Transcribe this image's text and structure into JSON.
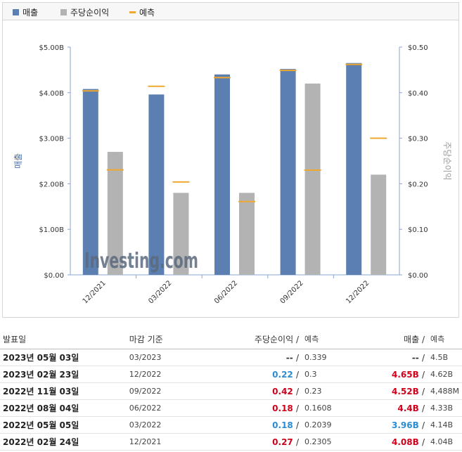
{
  "legend": {
    "items": [
      {
        "label": "매출",
        "color": "#5b7fb0"
      },
      {
        "label": "주당순이익",
        "color": "#b3b3b3"
      },
      {
        "label": "예측",
        "color": "#f0a830"
      }
    ]
  },
  "chart_data": {
    "type": "bar",
    "categories": [
      "12/2021",
      "03/2022",
      "06/2022",
      "09/2022",
      "12/2022"
    ],
    "series": [
      {
        "name": "매출",
        "axis": "left",
        "values": [
          4.08,
          3.96,
          4.4,
          4.52,
          4.65
        ],
        "forecast": [
          4.04,
          4.14,
          4.33,
          4.488,
          4.62
        ]
      },
      {
        "name": "주당순이익",
        "axis": "right",
        "values": [
          0.27,
          0.18,
          0.18,
          0.42,
          0.22
        ],
        "forecast": [
          0.2305,
          0.2039,
          0.1608,
          0.23,
          0.3
        ]
      }
    ],
    "ylabel_left": "매출",
    "ylabel_right": "주당순이익",
    "yticks_left": [
      "$0.00",
      "$1.00B",
      "$2.00B",
      "$3.00B",
      "$4.00B",
      "$5.00B"
    ],
    "yticks_right": [
      "$0.00",
      "$0.10",
      "$0.20",
      "$0.30",
      "$0.40",
      "$0.50"
    ],
    "ylim_left": [
      0,
      5
    ],
    "ylim_right": [
      0,
      0.5
    ],
    "watermark": "Investing.com"
  },
  "table": {
    "headers": {
      "date": "발표일",
      "period": "마감 기준",
      "eps": "주당순이익",
      "eps_fc": "예측",
      "rev": "매출",
      "rev_fc": "예측",
      "sep": "/"
    },
    "rows": [
      {
        "date": "2023년 05월 03일",
        "period": "03/2023",
        "eps": "--",
        "eps_fc": "0.339",
        "rev": "--",
        "rev_fc": "4.5B",
        "eps_color": "muted",
        "rev_color": "muted"
      },
      {
        "date": "2023년 02월 23일",
        "period": "12/2022",
        "eps": "0.22",
        "eps_fc": "0.3",
        "rev": "4.65B",
        "rev_fc": "4.62B",
        "eps_color": "green",
        "rev_color": "red"
      },
      {
        "date": "2022년 11월 03일",
        "period": "09/2022",
        "eps": "0.42",
        "eps_fc": "0.23",
        "rev": "4.52B",
        "rev_fc": "4,488M",
        "eps_color": "red",
        "rev_color": "red"
      },
      {
        "date": "2022년 08월 04일",
        "period": "06/2022",
        "eps": "0.18",
        "eps_fc": "0.1608",
        "rev": "4.4B",
        "rev_fc": "4.33B",
        "eps_color": "red",
        "rev_color": "red"
      },
      {
        "date": "2022년 05월 05일",
        "period": "03/2022",
        "eps": "0.18",
        "eps_fc": "0.2039",
        "rev": "3.96B",
        "rev_fc": "4.14B",
        "eps_color": "green",
        "rev_color": "green"
      },
      {
        "date": "2022년 02월 24일",
        "period": "12/2021",
        "eps": "0.27",
        "eps_fc": "0.2305",
        "rev": "4.08B",
        "rev_fc": "4.04B",
        "eps_color": "red",
        "rev_color": "red"
      }
    ]
  }
}
